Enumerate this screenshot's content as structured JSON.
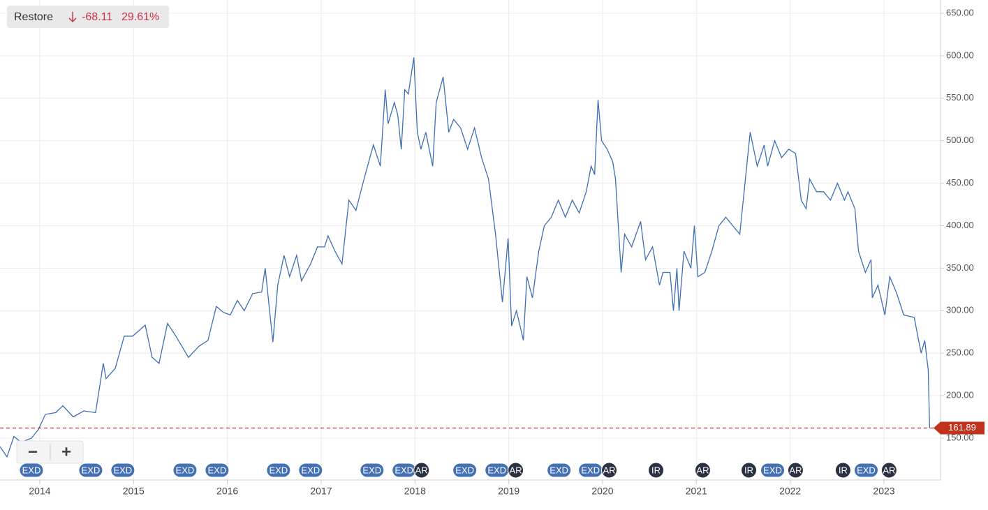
{
  "chart_data": {
    "type": "line",
    "x": [
      2013.576,
      2013.65,
      2013.725,
      2013.799,
      2013.911,
      2013.985,
      2014.06,
      2014.171,
      2014.246,
      2014.357,
      2014.469,
      2014.595,
      2014.677,
      2014.707,
      2014.804,
      2014.9,
      2014.99,
      2015.124,
      2015.198,
      2015.272,
      2015.362,
      2015.451,
      2015.585,
      2015.696,
      2015.793,
      2015.882,
      2015.957,
      2016.031,
      2016.106,
      2016.18,
      2016.269,
      2016.366,
      2016.403,
      2016.485,
      2016.537,
      2016.604,
      2016.664,
      2016.738,
      2016.79,
      2016.887,
      2016.961,
      2017.036,
      2017.073,
      2017.147,
      2017.222,
      2017.296,
      2017.371,
      2017.445,
      2017.519,
      2017.557,
      2017.631,
      2017.683,
      2017.713,
      2017.78,
      2017.817,
      2017.854,
      2017.891,
      2017.929,
      2017.988,
      2018.025,
      2018.063,
      2018.115,
      2018.189,
      2018.226,
      2018.301,
      2018.36,
      2018.412,
      2018.487,
      2018.561,
      2018.635,
      2018.71,
      2018.784,
      2018.859,
      2018.933,
      2018.993,
      2019.03,
      2019.082,
      2019.156,
      2019.193,
      2019.253,
      2019.32,
      2019.379,
      2019.454,
      2019.528,
      2019.603,
      2019.677,
      2019.751,
      2019.826,
      2019.878,
      2019.915,
      2019.952,
      2019.99,
      2020.049,
      2020.109,
      2020.138,
      2020.198,
      2020.235,
      2020.31,
      2020.406,
      2020.458,
      2020.533,
      2020.607,
      2020.644,
      2020.719,
      2020.756,
      2020.793,
      2020.815,
      2020.868,
      2020.942,
      2020.979,
      2021.016,
      2021.091,
      2021.165,
      2021.24,
      2021.314,
      2021.388,
      2021.463,
      2021.574,
      2021.649,
      2021.723,
      2021.76,
      2021.835,
      2021.909,
      2021.984,
      2022.058,
      2022.118,
      2022.17,
      2022.207,
      2022.281,
      2022.356,
      2022.43,
      2022.504,
      2022.579,
      2022.616,
      2022.69,
      2022.728,
      2022.802,
      2022.862,
      2022.876,
      2022.936,
      2023.01,
      2023.062,
      2023.137,
      2023.211,
      2023.323,
      2023.36,
      2023.397,
      2023.435,
      2023.472,
      2023.487
    ],
    "series": [
      {
        "name": "Restore",
        "color": "#3d6eb4",
        "values": [
          140,
          128,
          152,
          145,
          150,
          160,
          178,
          180,
          188,
          175,
          182,
          180,
          238,
          220,
          232,
          270,
          270,
          283,
          245,
          238,
          285,
          270,
          245,
          258,
          265,
          305,
          298,
          295,
          312,
          300,
          320,
          322,
          350,
          263,
          330,
          365,
          340,
          365,
          335,
          355,
          375,
          375,
          388,
          370,
          355,
          430,
          418,
          450,
          480,
          495,
          470,
          560,
          520,
          545,
          530,
          490,
          560,
          555,
          598,
          510,
          490,
          510,
          470,
          545,
          575,
          510,
          525,
          515,
          490,
          515,
          480,
          455,
          390,
          310,
          385,
          282,
          300,
          265,
          340,
          315,
          370,
          400,
          410,
          430,
          410,
          430,
          415,
          440,
          470,
          460,
          548,
          500,
          490,
          475,
          455,
          345,
          390,
          375,
          405,
          360,
          375,
          330,
          345,
          345,
          300,
          350,
          300,
          370,
          350,
          400,
          340,
          345,
          370,
          400,
          410,
          400,
          390,
          510,
          470,
          495,
          470,
          500,
          480,
          490,
          485,
          430,
          420,
          455,
          440,
          440,
          430,
          450,
          430,
          440,
          420,
          370,
          345,
          360,
          315,
          330,
          295,
          340,
          320,
          295,
          292,
          270,
          250,
          265,
          230,
          161.89
        ]
      }
    ],
    "change": -68.11,
    "change_pct": {
      "value": 29.61,
      "label": "29.61%"
    },
    "last_price": 161.89,
    "last_price_color": "#c1311c",
    "xlim": [
      2013.576,
      2023.603
    ],
    "xticks": [
      2014,
      2015,
      2016,
      2017,
      2018,
      2019,
      2020,
      2021,
      2022,
      2023
    ],
    "ylim": [
      100.7,
      665.6
    ],
    "yticks": [
      {
        "value": 150,
        "label": "150.00"
      },
      {
        "value": 200,
        "label": "200.00"
      },
      {
        "value": 250,
        "label": "250.00"
      },
      {
        "value": 300,
        "label": "300.00"
      },
      {
        "value": 350,
        "label": "350.00"
      },
      {
        "value": 400,
        "label": "400.00"
      },
      {
        "value": 450,
        "label": "450.00"
      },
      {
        "value": 500,
        "label": "500.00"
      },
      {
        "value": 550,
        "label": "550.00"
      },
      {
        "value": 600,
        "label": "600.00"
      },
      {
        "value": 650,
        "label": "650.00"
      }
    ],
    "grid": true,
    "events": [
      {
        "x": 2013.911,
        "label": "EXD"
      },
      {
        "x": 2014.543,
        "label": "EXD"
      },
      {
        "x": 2014.885,
        "label": "EXD"
      },
      {
        "x": 2015.548,
        "label": "EXD"
      },
      {
        "x": 2015.89,
        "label": "EXD"
      },
      {
        "x": 2016.545,
        "label": "EXD"
      },
      {
        "x": 2016.887,
        "label": "EXD"
      },
      {
        "x": 2017.542,
        "label": "EXD"
      },
      {
        "x": 2017.884,
        "label": "EXD"
      },
      {
        "x": 2018.07,
        "label": "AR"
      },
      {
        "x": 2018.531,
        "label": "EXD"
      },
      {
        "x": 2018.874,
        "label": "EXD"
      },
      {
        "x": 2019.074,
        "label": "AR"
      },
      {
        "x": 2019.536,
        "label": "EXD"
      },
      {
        "x": 2019.871,
        "label": "EXD"
      },
      {
        "x": 2020.071,
        "label": "AR"
      },
      {
        "x": 2020.57,
        "label": "IR"
      },
      {
        "x": 2021.068,
        "label": "AR"
      },
      {
        "x": 2021.56,
        "label": "IR"
      },
      {
        "x": 2021.813,
        "label": "EXD"
      },
      {
        "x": 2022.058,
        "label": "AR"
      },
      {
        "x": 2022.564,
        "label": "IR"
      },
      {
        "x": 2022.81,
        "label": "EXD"
      },
      {
        "x": 2023.055,
        "label": "AR"
      }
    ],
    "zoom": [
      "−",
      "+"
    ]
  }
}
